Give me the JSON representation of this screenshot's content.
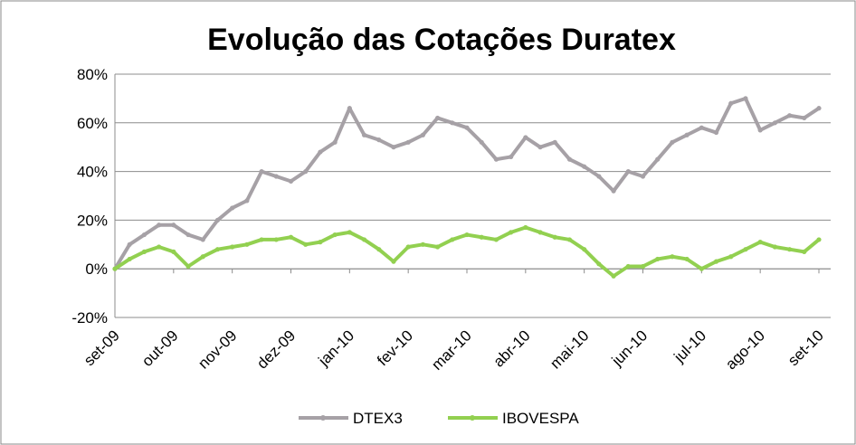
{
  "chart_data": {
    "type": "line",
    "title": "Evolução das Cotações Duratex",
    "categories": [
      "set-09",
      null,
      null,
      null,
      "out-09",
      null,
      null,
      null,
      "nov-09",
      null,
      null,
      null,
      "dez-09",
      null,
      null,
      null,
      "jan-10",
      null,
      null,
      null,
      "fev-10",
      null,
      null,
      null,
      "mar-10",
      null,
      null,
      null,
      "abr-10",
      null,
      null,
      null,
      "mai-10",
      null,
      null,
      null,
      "jun-10",
      null,
      null,
      null,
      "jul-10",
      null,
      null,
      null,
      "ago-10",
      null,
      null,
      null,
      "set-10"
    ],
    "series": [
      {
        "name": "DTEX3",
        "color": "#a6a1a6",
        "values": [
          0,
          10,
          14,
          18,
          18,
          14,
          12,
          20,
          25,
          28,
          40,
          38,
          36,
          40,
          48,
          52,
          66,
          55,
          53,
          50,
          52,
          55,
          62,
          60,
          58,
          52,
          45,
          46,
          54,
          50,
          52,
          45,
          42,
          38,
          32,
          40,
          38,
          45,
          52,
          55,
          58,
          56,
          68,
          70,
          57,
          60,
          63,
          62,
          66
        ]
      },
      {
        "name": "IBOVESPA",
        "color": "#92d050",
        "values": [
          0,
          4,
          7,
          9,
          7,
          1,
          5,
          8,
          9,
          10,
          12,
          12,
          13,
          10,
          11,
          14,
          15,
          12,
          8,
          3,
          9,
          10,
          9,
          12,
          14,
          13,
          12,
          15,
          17,
          15,
          13,
          12,
          8,
          2,
          -3,
          1,
          1,
          4,
          5,
          4,
          0,
          3,
          5,
          8,
          11,
          9,
          8,
          7,
          12
        ]
      }
    ],
    "ylim": [
      -20,
      80
    ],
    "yticks": [
      {
        "value": -20,
        "label": "-20%"
      },
      {
        "value": 0,
        "label": "0%"
      },
      {
        "value": 20,
        "label": "20%"
      },
      {
        "value": 40,
        "label": "40%"
      },
      {
        "value": 60,
        "label": "60%"
      },
      {
        "value": 80,
        "label": "80%"
      }
    ],
    "grid": true,
    "legend": "bottom"
  }
}
